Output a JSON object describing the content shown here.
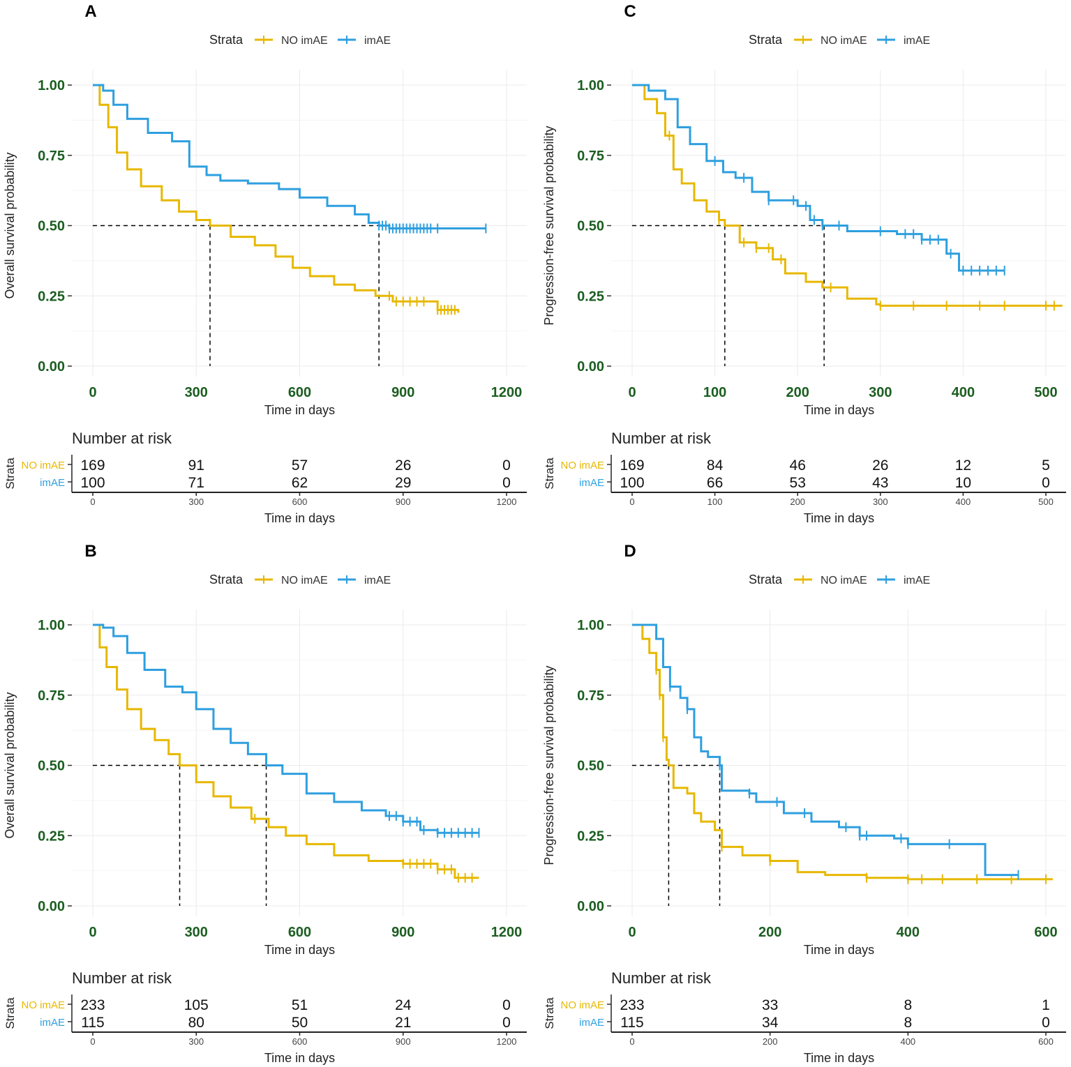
{
  "colors": {
    "no_imae": "#E7B800",
    "imae": "#2E9FDF",
    "tick_text": "#1b5e20",
    "grid": "#ebebeb"
  },
  "common": {
    "legend_title": "Strata",
    "legend_labels": [
      "NO imAE",
      "imAE"
    ],
    "xlabel": "Time in days",
    "risk_title": "Number at risk",
    "risk_ylabel": "Strata",
    "y_ticks": [
      "0.00",
      "0.25",
      "0.50",
      "0.75",
      "1.00"
    ]
  },
  "chart_data": [
    {
      "panel": "A",
      "type": "line",
      "title": "A",
      "ylabel": "Overall survival probability",
      "xlabel": "Time in days",
      "xlim": [
        0,
        1200
      ],
      "ylim": [
        0,
        1
      ],
      "x_ticks": [
        0,
        300,
        600,
        900,
        1200
      ],
      "legend": [
        "NO imAE",
        "imAE"
      ],
      "series": [
        {
          "name": "NO imAE",
          "color": "#E7B800",
          "points": [
            [
              0,
              1
            ],
            [
              20,
              0.93
            ],
            [
              45,
              0.85
            ],
            [
              70,
              0.76
            ],
            [
              100,
              0.7
            ],
            [
              140,
              0.64
            ],
            [
              200,
              0.59
            ],
            [
              250,
              0.55
            ],
            [
              300,
              0.52
            ],
            [
              340,
              0.5
            ],
            [
              400,
              0.46
            ],
            [
              470,
              0.43
            ],
            [
              530,
              0.39
            ],
            [
              580,
              0.35
            ],
            [
              630,
              0.32
            ],
            [
              700,
              0.29
            ],
            [
              760,
              0.27
            ],
            [
              820,
              0.25
            ],
            [
              870,
              0.23
            ],
            [
              950,
              0.23
            ],
            [
              1000,
              0.2
            ],
            [
              1060,
              0.19
            ]
          ],
          "censor": [
            860,
            880,
            900,
            920,
            940,
            960,
            1000,
            1010,
            1020,
            1030,
            1040,
            1050
          ]
        },
        {
          "name": "imAE",
          "color": "#2E9FDF",
          "points": [
            [
              0,
              1
            ],
            [
              30,
              0.98
            ],
            [
              60,
              0.93
            ],
            [
              100,
              0.88
            ],
            [
              160,
              0.83
            ],
            [
              230,
              0.8
            ],
            [
              280,
              0.71
            ],
            [
              330,
              0.68
            ],
            [
              370,
              0.66
            ],
            [
              450,
              0.65
            ],
            [
              540,
              0.63
            ],
            [
              600,
              0.6
            ],
            [
              680,
              0.57
            ],
            [
              760,
              0.54
            ],
            [
              800,
              0.51
            ],
            [
              830,
              0.5
            ],
            [
              860,
              0.49
            ],
            [
              1140,
              0.49
            ]
          ],
          "censor": [
            830,
            840,
            850,
            860,
            870,
            880,
            890,
            900,
            910,
            920,
            930,
            940,
            950,
            960,
            970,
            980,
            1000,
            1140
          ]
        }
      ],
      "medians": [
        340,
        830
      ],
      "risk_table": {
        "times": [
          0,
          300,
          600,
          900,
          1200
        ],
        "NO imAE": [
          169,
          91,
          57,
          26,
          0
        ],
        "imAE": [
          100,
          71,
          62,
          29,
          0
        ]
      }
    },
    {
      "panel": "C",
      "type": "line",
      "title": "C",
      "ylabel": "Progression-free survival probability",
      "xlabel": "Time in days",
      "xlim": [
        0,
        520
      ],
      "ylim": [
        0,
        1
      ],
      "x_ticks": [
        0,
        100,
        200,
        300,
        400,
        500
      ],
      "legend": [
        "NO imAE",
        "imAE"
      ],
      "series": [
        {
          "name": "NO imAE",
          "color": "#E7B800",
          "points": [
            [
              0,
              1
            ],
            [
              15,
              0.95
            ],
            [
              30,
              0.9
            ],
            [
              40,
              0.82
            ],
            [
              50,
              0.7
            ],
            [
              60,
              0.65
            ],
            [
              75,
              0.59
            ],
            [
              90,
              0.55
            ],
            [
              105,
              0.52
            ],
            [
              112,
              0.5
            ],
            [
              130,
              0.44
            ],
            [
              150,
              0.42
            ],
            [
              170,
              0.38
            ],
            [
              185,
              0.33
            ],
            [
              210,
              0.3
            ],
            [
              230,
              0.28
            ],
            [
              260,
              0.24
            ],
            [
              295,
              0.22
            ],
            [
              300,
              0.215
            ],
            [
              520,
              0.215
            ]
          ],
          "censor": [
            45,
            105,
            135,
            150,
            165,
            180,
            240,
            300,
            340,
            380,
            420,
            450,
            500,
            510
          ]
        },
        {
          "name": "imAE",
          "color": "#2E9FDF",
          "points": [
            [
              0,
              1
            ],
            [
              20,
              0.98
            ],
            [
              40,
              0.95
            ],
            [
              55,
              0.85
            ],
            [
              70,
              0.79
            ],
            [
              90,
              0.73
            ],
            [
              110,
              0.69
            ],
            [
              125,
              0.67
            ],
            [
              145,
              0.62
            ],
            [
              165,
              0.59
            ],
            [
              200,
              0.57
            ],
            [
              215,
              0.52
            ],
            [
              230,
              0.5
            ],
            [
              260,
              0.48
            ],
            [
              300,
              0.48
            ],
            [
              320,
              0.47
            ],
            [
              350,
              0.45
            ],
            [
              380,
              0.4
            ],
            [
              395,
              0.34
            ],
            [
              450,
              0.34
            ]
          ],
          "censor": [
            100,
            135,
            165,
            195,
            210,
            220,
            230,
            250,
            300,
            330,
            340,
            350,
            360,
            370,
            385,
            400,
            410,
            420,
            430,
            440,
            450
          ]
        }
      ],
      "medians": [
        112,
        232
      ],
      "risk_table": {
        "times": [
          0,
          100,
          200,
          300,
          400,
          500
        ],
        "NO imAE": [
          169,
          84,
          46,
          26,
          12,
          5
        ],
        "imAE": [
          100,
          66,
          53,
          43,
          10,
          0
        ]
      }
    },
    {
      "panel": "B",
      "type": "line",
      "title": "B",
      "ylabel": "Overall survival probability",
      "xlabel": "Time in days",
      "xlim": [
        0,
        1200
      ],
      "ylim": [
        0,
        1
      ],
      "x_ticks": [
        0,
        300,
        600,
        900,
        1200
      ],
      "legend": [
        "NO imAE",
        "imAE"
      ],
      "series": [
        {
          "name": "NO imAE",
          "color": "#E7B800",
          "points": [
            [
              0,
              1
            ],
            [
              20,
              0.92
            ],
            [
              40,
              0.85
            ],
            [
              70,
              0.77
            ],
            [
              100,
              0.7
            ],
            [
              140,
              0.63
            ],
            [
              180,
              0.59
            ],
            [
              220,
              0.54
            ],
            [
              252,
              0.5
            ],
            [
              300,
              0.44
            ],
            [
              350,
              0.39
            ],
            [
              400,
              0.35
            ],
            [
              460,
              0.31
            ],
            [
              510,
              0.28
            ],
            [
              560,
              0.25
            ],
            [
              620,
              0.22
            ],
            [
              700,
              0.18
            ],
            [
              800,
              0.16
            ],
            [
              900,
              0.15
            ],
            [
              1000,
              0.13
            ],
            [
              1050,
              0.1
            ],
            [
              1120,
              0.1
            ]
          ],
          "censor": [
            470,
            900,
            920,
            940,
            960,
            980,
            1000,
            1020,
            1040,
            1060,
            1080,
            1100
          ]
        },
        {
          "name": "imAE",
          "color": "#2E9FDF",
          "points": [
            [
              0,
              1
            ],
            [
              30,
              0.99
            ],
            [
              60,
              0.96
            ],
            [
              100,
              0.9
            ],
            [
              150,
              0.84
            ],
            [
              210,
              0.78
            ],
            [
              260,
              0.76
            ],
            [
              300,
              0.7
            ],
            [
              350,
              0.63
            ],
            [
              400,
              0.58
            ],
            [
              450,
              0.54
            ],
            [
              503,
              0.5
            ],
            [
              550,
              0.47
            ],
            [
              620,
              0.4
            ],
            [
              700,
              0.37
            ],
            [
              780,
              0.34
            ],
            [
              850,
              0.32
            ],
            [
              900,
              0.3
            ],
            [
              950,
              0.27
            ],
            [
              1000,
              0.26
            ],
            [
              1120,
              0.26
            ]
          ],
          "censor": [
            860,
            880,
            900,
            920,
            940,
            960,
            1000,
            1020,
            1040,
            1060,
            1080,
            1100,
            1120
          ]
        }
      ],
      "medians": [
        252,
        503
      ],
      "risk_table": {
        "times": [
          0,
          300,
          600,
          900,
          1200
        ],
        "NO imAE": [
          233,
          105,
          51,
          24,
          0
        ],
        "imAE": [
          115,
          80,
          50,
          21,
          0
        ]
      }
    },
    {
      "panel": "D",
      "type": "line",
      "title": "D",
      "ylabel": "Progression-free survival probability",
      "xlabel": "Time in days",
      "xlim": [
        0,
        620
      ],
      "ylim": [
        0,
        1
      ],
      "x_ticks": [
        0,
        200,
        400,
        600
      ],
      "legend": [
        "NO imAE",
        "imAE"
      ],
      "series": [
        {
          "name": "NO imAE",
          "color": "#E7B800",
          "points": [
            [
              0,
              1
            ],
            [
              15,
              0.95
            ],
            [
              25,
              0.9
            ],
            [
              35,
              0.84
            ],
            [
              40,
              0.75
            ],
            [
              45,
              0.6
            ],
            [
              50,
              0.52
            ],
            [
              53,
              0.5
            ],
            [
              60,
              0.42
            ],
            [
              80,
              0.4
            ],
            [
              90,
              0.33
            ],
            [
              100,
              0.3
            ],
            [
              120,
              0.27
            ],
            [
              130,
              0.21
            ],
            [
              160,
              0.18
            ],
            [
              200,
              0.16
            ],
            [
              240,
              0.12
            ],
            [
              280,
              0.11
            ],
            [
              340,
              0.1
            ],
            [
              400,
              0.095
            ],
            [
              610,
              0.095
            ]
          ],
          "censor": [
            35,
            40,
            45,
            130,
            200,
            340,
            400,
            420,
            450,
            500,
            550,
            600
          ]
        },
        {
          "name": "imAE",
          "color": "#2E9FDF",
          "points": [
            [
              0,
              1
            ],
            [
              25,
              1.0
            ],
            [
              35,
              0.95
            ],
            [
              45,
              0.85
            ],
            [
              55,
              0.78
            ],
            [
              70,
              0.74
            ],
            [
              80,
              0.7
            ],
            [
              90,
              0.6
            ],
            [
              100,
              0.55
            ],
            [
              110,
              0.53
            ],
            [
              127,
              0.5
            ],
            [
              130,
              0.41
            ],
            [
              170,
              0.4
            ],
            [
              180,
              0.37
            ],
            [
              220,
              0.33
            ],
            [
              260,
              0.3
            ],
            [
              300,
              0.28
            ],
            [
              330,
              0.25
            ],
            [
              380,
              0.24
            ],
            [
              400,
              0.22
            ],
            [
              510,
              0.22
            ],
            [
              512,
              0.11
            ],
            [
              560,
              0.11
            ]
          ],
          "censor": [
            55,
            80,
            127,
            170,
            210,
            250,
            310,
            330,
            340,
            390,
            400,
            460,
            560
          ]
        }
      ],
      "medians": [
        53,
        127
      ],
      "risk_table": {
        "times": [
          0,
          200,
          400,
          600
        ],
        "NO imAE": [
          233,
          33,
          8,
          1
        ],
        "imAE": [
          115,
          34,
          8,
          0
        ]
      }
    }
  ]
}
